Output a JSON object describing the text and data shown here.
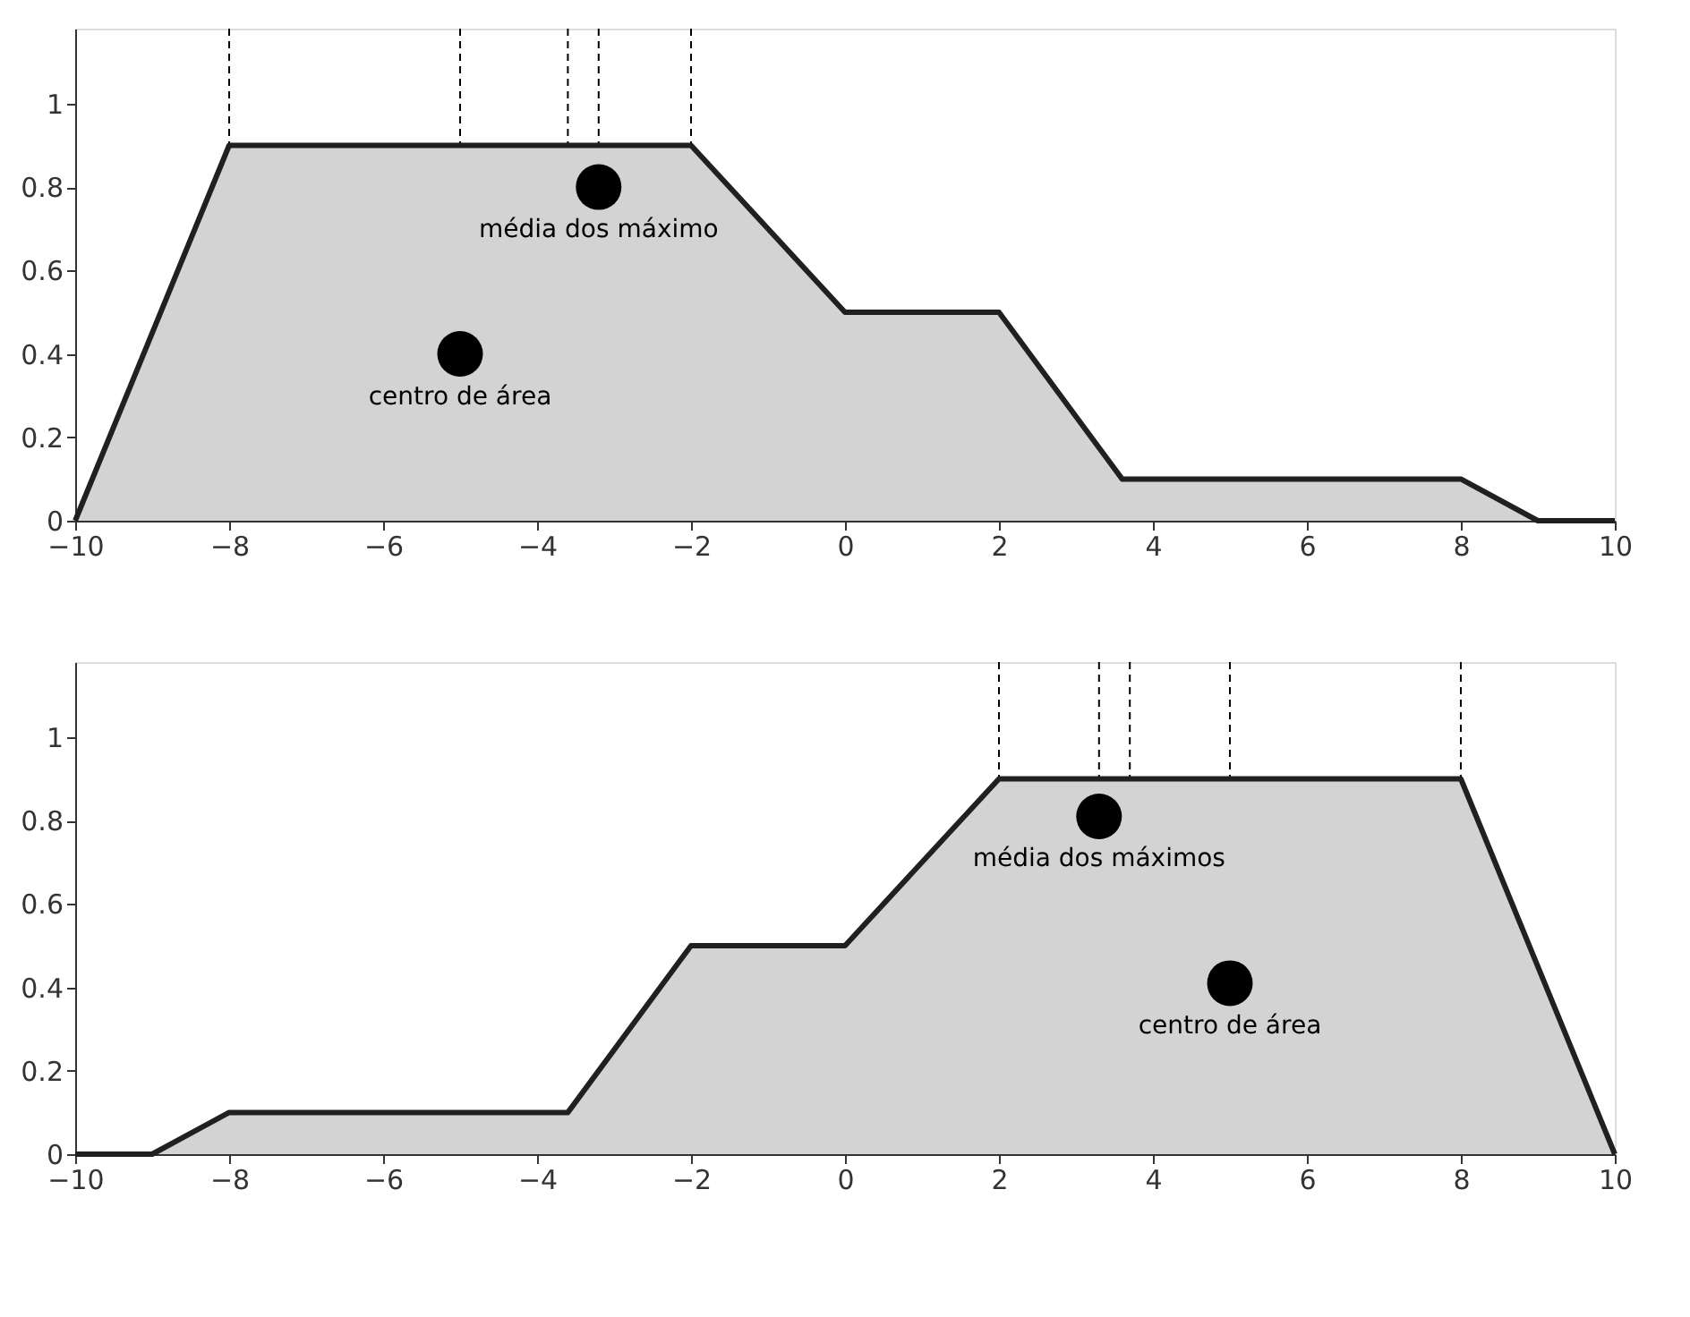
{
  "chart_data": [
    {
      "type": "area",
      "xlim": [
        -10,
        10
      ],
      "ylim": [
        0,
        1.18
      ],
      "xticks": [
        -10,
        -8,
        -6,
        -4,
        -2,
        0,
        2,
        4,
        6,
        8,
        10
      ],
      "yticks": [
        0,
        0.2,
        0.4,
        0.6,
        0.8,
        1
      ],
      "grid": false,
      "series": [
        {
          "color": "#d3d3d3",
          "x": [
            -10,
            -8,
            -2,
            0,
            2,
            3.6,
            8,
            9,
            10
          ],
          "values": [
            0,
            0.9,
            0.9,
            0.5,
            0.5,
            0.1,
            0.1,
            0,
            0
          ]
        },
        {
          "type": "scatter",
          "color": "#000000",
          "marker": "circle",
          "x": [
            -5,
            -3.2
          ],
          "values": [
            0.4,
            0.8
          ]
        }
      ],
      "ref_lines": [
        {
          "axis": "x",
          "value": -8,
          "color": "#000000",
          "line_style": "dashed"
        },
        {
          "axis": "x",
          "value": -5,
          "color": "#000000",
          "line_style": "dashed"
        },
        {
          "axis": "x",
          "value": -3.6,
          "color": "#000000",
          "line_style": "dashed"
        },
        {
          "axis": "x",
          "value": -3.2,
          "color": "#000000",
          "line_style": "dashed"
        },
        {
          "axis": "x",
          "value": -2,
          "color": "#000000",
          "line_style": "dashed"
        }
      ],
      "annotations": [
        {
          "text": "centro de área",
          "x": -5,
          "y": 0.4
        },
        {
          "text": "média dos máximo",
          "x": -3.2,
          "y": 0.8
        }
      ]
    },
    {
      "type": "area",
      "xlim": [
        -10,
        10
      ],
      "ylim": [
        0,
        1.18
      ],
      "xticks": [
        -10,
        -8,
        -6,
        -4,
        -2,
        0,
        2,
        4,
        6,
        8,
        10
      ],
      "yticks": [
        0,
        0.2,
        0.4,
        0.6,
        0.8,
        1
      ],
      "grid": false,
      "series": [
        {
          "color": "#d3d3d3",
          "x": [
            -10,
            -9,
            -8,
            -3.6,
            -2,
            0,
            2,
            8,
            10
          ],
          "values": [
            0,
            0,
            0.1,
            0.1,
            0.5,
            0.5,
            0.9,
            0.9,
            0
          ]
        },
        {
          "type": "scatter",
          "color": "#000000",
          "marker": "circle",
          "x": [
            3.3,
            5
          ],
          "values": [
            0.81,
            0.41
          ]
        }
      ],
      "ref_lines": [
        {
          "axis": "x",
          "value": 2,
          "color": "#000000",
          "line_style": "dashed"
        },
        {
          "axis": "x",
          "value": 3.3,
          "color": "#000000",
          "line_style": "dashed"
        },
        {
          "axis": "x",
          "value": 3.7,
          "color": "#000000",
          "line_style": "dashed"
        },
        {
          "axis": "x",
          "value": 5,
          "color": "#000000",
          "line_style": "dashed"
        },
        {
          "axis": "x",
          "value": 8,
          "color": "#000000",
          "line_style": "dashed"
        }
      ],
      "annotations": [
        {
          "text": "média dos máximos",
          "x": 3.3,
          "y": 0.81
        },
        {
          "text": "centro de área",
          "x": 5,
          "y": 0.41
        }
      ]
    }
  ]
}
